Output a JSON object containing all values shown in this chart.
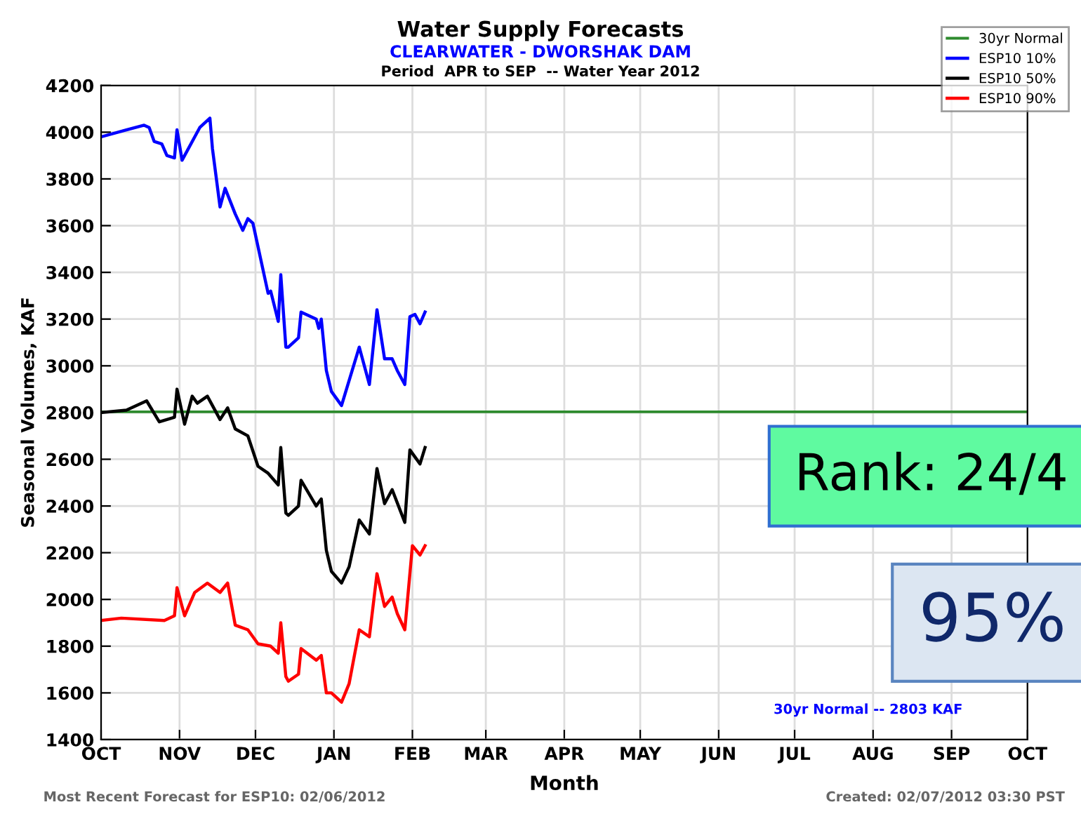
{
  "chart_data": {
    "type": "line",
    "title": "Water Supply Forecasts",
    "subtitle": "CLEARWATER - DWORSHAK DAM",
    "xlabel": "Month",
    "ylabel": "Seasonal Volumes, KAF",
    "annotations": [
      "Period  APR to SEP  -- Water Year 2012",
      "30yr Normal -- 2803 KAF",
      "Most Recent Forecast for ESP10: 02/06/2012",
      "Created: 02/07/2012 03:30 PST",
      "Rank: 24/4",
      "95%"
    ],
    "xlim": [
      "2011-10-01",
      "2012-10-01"
    ],
    "xticks": [
      {
        "value": "2011-10-01",
        "label": "OCT"
      },
      {
        "value": "2011-11-01",
        "label": "NOV"
      },
      {
        "value": "2011-12-01",
        "label": "DEC"
      },
      {
        "value": "2012-01-01",
        "label": "JAN"
      },
      {
        "value": "2012-02-01",
        "label": "FEB"
      },
      {
        "value": "2012-03-01",
        "label": "MAR"
      },
      {
        "value": "2012-04-01",
        "label": "APR"
      },
      {
        "value": "2012-05-01",
        "label": "MAY"
      },
      {
        "value": "2012-06-01",
        "label": "JUN"
      },
      {
        "value": "2012-07-01",
        "label": "JUL"
      },
      {
        "value": "2012-08-01",
        "label": "AUG"
      },
      {
        "value": "2012-09-01",
        "label": "SEP"
      },
      {
        "value": "2012-10-01",
        "label": "OCT"
      }
    ],
    "ylim": [
      1400,
      4200
    ],
    "yticks": [
      1400,
      1600,
      1800,
      2000,
      2200,
      2400,
      2600,
      2800,
      3000,
      3200,
      3400,
      3600,
      3800,
      4000,
      4200
    ],
    "grid": true,
    "legend": "top right",
    "marker": "none",
    "line_style": "solid",
    "series": [
      {
        "name": "30yr Normal",
        "color": "#2e8b2e",
        "x": [
          "2011-10-01",
          "2012-10-01"
        ],
        "values": [
          2803,
          2803
        ]
      },
      {
        "name": "ESP10 10%",
        "color": "#0000ff",
        "x": [
          "2011-10-01",
          "2011-10-11",
          "2011-10-18",
          "2011-10-20",
          "2011-10-22",
          "2011-10-25",
          "2011-10-27",
          "2011-10-30",
          "2011-10-31",
          "2011-11-02",
          "2011-11-09",
          "2011-11-13",
          "2011-11-14",
          "2011-11-17",
          "2011-11-19",
          "2011-11-23",
          "2011-11-26",
          "2011-11-28",
          "2011-11-30",
          "2011-12-06",
          "2011-12-07",
          "2011-12-10",
          "2011-12-11",
          "2011-12-13",
          "2011-12-14",
          "2011-12-18",
          "2011-12-19",
          "2011-12-25",
          "2011-12-26",
          "2011-12-27",
          "2011-12-29",
          "2011-12-31",
          "2012-01-04",
          "2012-01-11",
          "2012-01-15",
          "2012-01-18",
          "2012-01-21",
          "2012-01-24",
          "2012-01-26",
          "2012-01-29",
          "2012-01-31",
          "2012-02-02",
          "2012-02-04",
          "2012-02-06"
        ],
        "values": [
          3980,
          4010,
          4030,
          4020,
          3960,
          3950,
          3900,
          3890,
          4010,
          3880,
          4020,
          4060,
          3930,
          3680,
          3760,
          3650,
          3580,
          3630,
          3610,
          3310,
          3320,
          3190,
          3390,
          3080,
          3080,
          3120,
          3230,
          3200,
          3160,
          3200,
          2980,
          2890,
          2830,
          3080,
          2920,
          3240,
          3030,
          3030,
          2980,
          2920,
          3210,
          3220,
          3180,
          3230
        ]
      },
      {
        "name": "ESP10 50%",
        "color": "#000000",
        "x": [
          "2011-10-01",
          "2011-10-11",
          "2011-10-19",
          "2011-10-24",
          "2011-10-30",
          "2011-10-31",
          "2011-11-03",
          "2011-11-06",
          "2011-11-08",
          "2011-11-12",
          "2011-11-17",
          "2011-11-20",
          "2011-11-23",
          "2011-11-28",
          "2011-12-02",
          "2011-12-06",
          "2011-12-10",
          "2011-12-11",
          "2011-12-13",
          "2011-12-14",
          "2011-12-18",
          "2011-12-19",
          "2011-12-25",
          "2011-12-27",
          "2011-12-29",
          "2011-12-31",
          "2012-01-04",
          "2012-01-07",
          "2012-01-11",
          "2012-01-15",
          "2012-01-18",
          "2012-01-21",
          "2012-01-24",
          "2012-01-29",
          "2012-01-31",
          "2012-02-04",
          "2012-02-06"
        ],
        "values": [
          2800,
          2810,
          2850,
          2760,
          2780,
          2900,
          2750,
          2870,
          2840,
          2870,
          2770,
          2820,
          2730,
          2700,
          2570,
          2540,
          2490,
          2650,
          2370,
          2360,
          2400,
          2510,
          2400,
          2430,
          2210,
          2120,
          2070,
          2140,
          2340,
          2280,
          2560,
          2410,
          2470,
          2330,
          2640,
          2580,
          2650
        ]
      },
      {
        "name": "ESP10 90%",
        "color": "#ff0000",
        "x": [
          "2011-10-01",
          "2011-10-09",
          "2011-10-26",
          "2011-10-30",
          "2011-10-31",
          "2011-11-03",
          "2011-11-07",
          "2011-11-12",
          "2011-11-17",
          "2011-11-20",
          "2011-11-23",
          "2011-11-28",
          "2011-12-02",
          "2011-12-07",
          "2011-12-10",
          "2011-12-11",
          "2011-12-13",
          "2011-12-14",
          "2011-12-18",
          "2011-12-19",
          "2011-12-25",
          "2011-12-27",
          "2011-12-29",
          "2011-12-31",
          "2012-01-04",
          "2012-01-07",
          "2012-01-11",
          "2012-01-15",
          "2012-01-18",
          "2012-01-21",
          "2012-01-24",
          "2012-01-26",
          "2012-01-29",
          "2012-02-01",
          "2012-02-04",
          "2012-02-06"
        ],
        "values": [
          1910,
          1920,
          1910,
          1930,
          2050,
          1930,
          2030,
          2070,
          2030,
          2070,
          1890,
          1870,
          1810,
          1800,
          1770,
          1900,
          1670,
          1650,
          1680,
          1790,
          1740,
          1760,
          1600,
          1600,
          1560,
          1640,
          1870,
          1840,
          2110,
          1970,
          2010,
          1940,
          1870,
          2230,
          2190,
          2230
        ]
      }
    ]
  }
}
